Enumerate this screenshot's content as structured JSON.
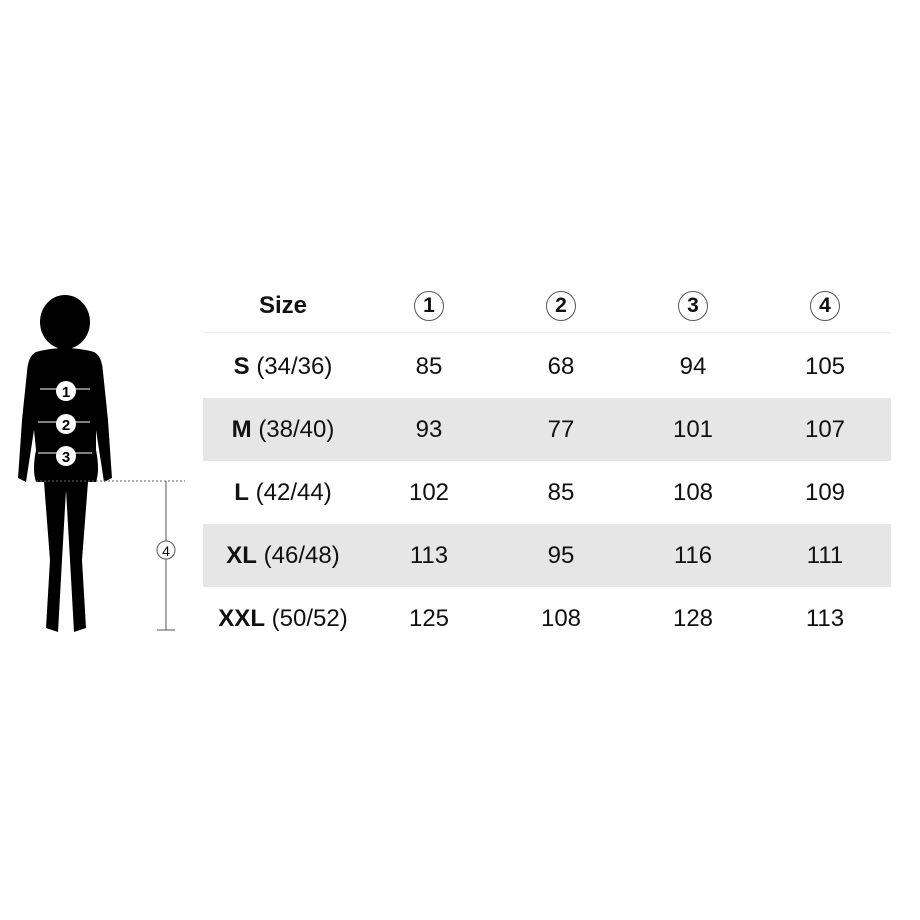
{
  "header": {
    "size_label": "Size",
    "measure_markers": [
      "1",
      "2",
      "3",
      "4"
    ]
  },
  "figure": {
    "body_markers": [
      "1",
      "2",
      "3"
    ],
    "length_marker": "4",
    "icon": "woman-silhouette-icon"
  },
  "rows": [
    {
      "size": "S",
      "eu": "(34/36)",
      "values": [
        "85",
        "68",
        "94",
        "105"
      ]
    },
    {
      "size": "M",
      "eu": "(38/40)",
      "values": [
        "93",
        "77",
        "101",
        "107"
      ]
    },
    {
      "size": "L",
      "eu": "(42/44)",
      "values": [
        "102",
        "85",
        "108",
        "109"
      ]
    },
    {
      "size": "XL",
      "eu": "(46/48)",
      "values": [
        "113",
        "95",
        "116",
        "111"
      ]
    },
    {
      "size": "XXL",
      "eu": "(50/52)",
      "values": [
        "125",
        "108",
        "128",
        "113"
      ]
    }
  ],
  "colors": {
    "stripe": "#e6e6e6",
    "silhouette": "#000000"
  }
}
